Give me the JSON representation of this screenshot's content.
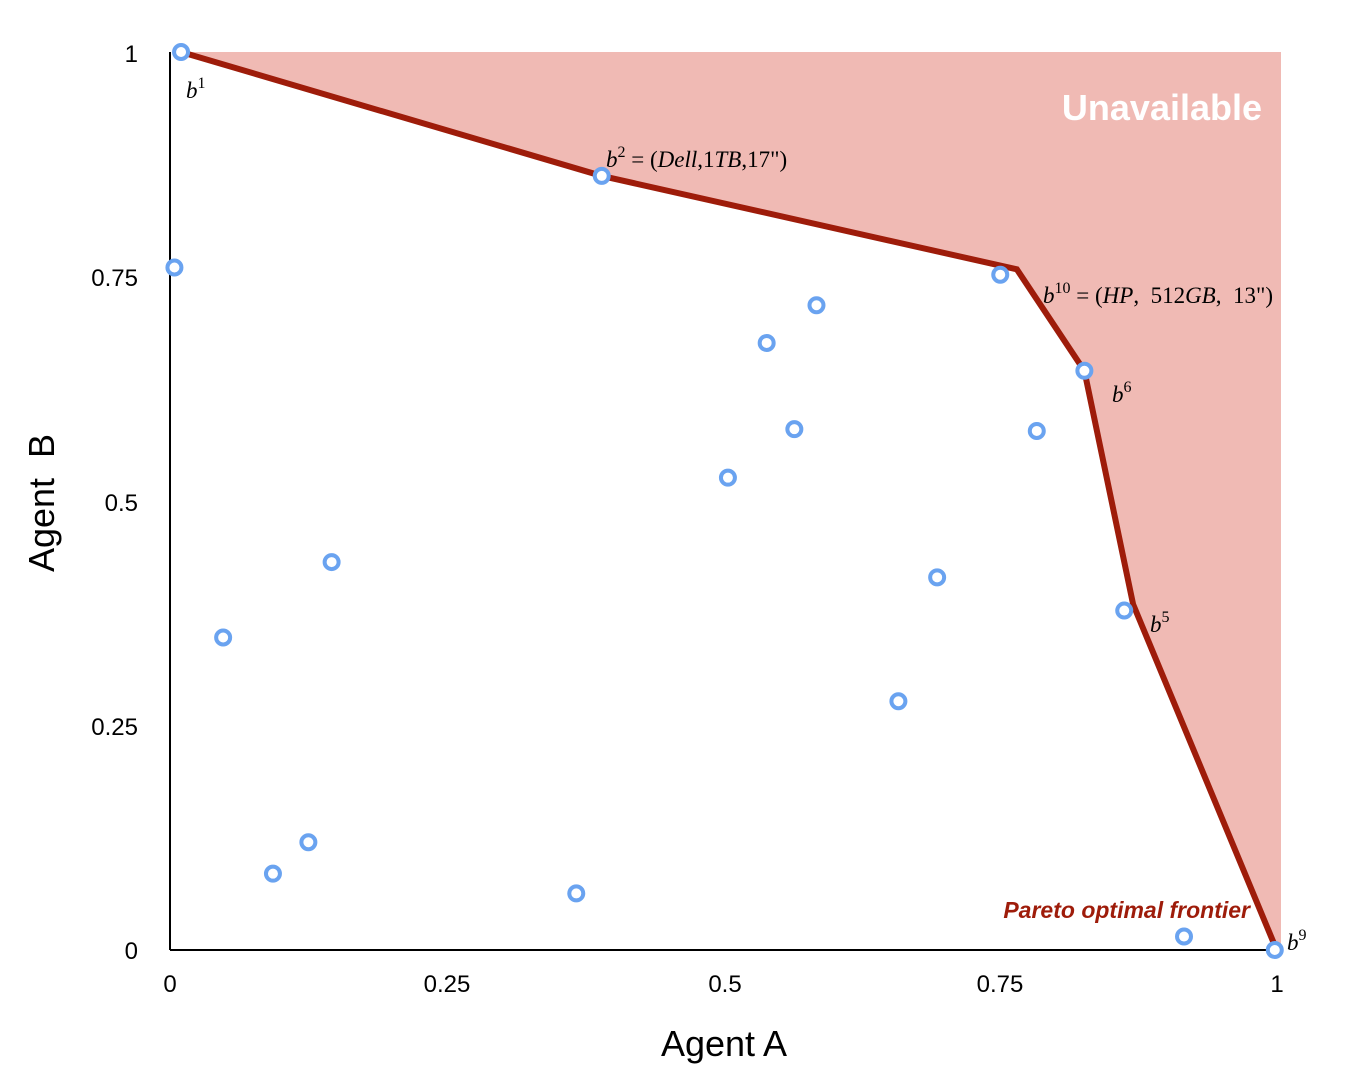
{
  "chart_data": {
    "type": "scatter",
    "xlabel": "Agent A",
    "ylabel": "Agent  B",
    "xlim": [
      0,
      1
    ],
    "ylim": [
      0,
      1
    ],
    "x_ticks": [
      "0",
      "0.25",
      "0.5",
      "0.75",
      "1"
    ],
    "y_ticks": [
      "0",
      "0.25",
      "0.5",
      "0.75",
      "1"
    ],
    "region_label": "Unavailable",
    "region_color": "#f0bab4",
    "frontier_label": "Pareto optimal frontier",
    "frontier_color": "#9e1c0a",
    "point_color": "#6aa3f0",
    "frontier": [
      {
        "x": 0.01,
        "y": 1.0
      },
      {
        "x": 0.39,
        "y": 0.862
      },
      {
        "x": 0.765,
        "y": 0.758
      },
      {
        "x": 0.826,
        "y": 0.645
      },
      {
        "x": 0.87,
        "y": 0.385
      },
      {
        "x": 0.998,
        "y": 0.005
      }
    ],
    "points": [
      {
        "x": 0.01,
        "y": 1.0
      },
      {
        "x": 0.39,
        "y": 0.862
      },
      {
        "x": 0.004,
        "y": 0.76
      },
      {
        "x": 0.75,
        "y": 0.752
      },
      {
        "x": 0.584,
        "y": 0.718
      },
      {
        "x": 0.539,
        "y": 0.676
      },
      {
        "x": 0.826,
        "y": 0.645
      },
      {
        "x": 0.564,
        "y": 0.58
      },
      {
        "x": 0.783,
        "y": 0.578
      },
      {
        "x": 0.504,
        "y": 0.526
      },
      {
        "x": 0.146,
        "y": 0.432
      },
      {
        "x": 0.693,
        "y": 0.415
      },
      {
        "x": 0.862,
        "y": 0.378
      },
      {
        "x": 0.048,
        "y": 0.348
      },
      {
        "x": 0.658,
        "y": 0.277
      },
      {
        "x": 0.125,
        "y": 0.12
      },
      {
        "x": 0.093,
        "y": 0.085
      },
      {
        "x": 0.367,
        "y": 0.063
      },
      {
        "x": 0.916,
        "y": 0.015
      },
      {
        "x": 0.998,
        "y": 0.0
      }
    ],
    "annotations": {
      "b1": {
        "base": "b",
        "sup": "1"
      },
      "b2": {
        "base": "b",
        "sup": "2",
        "rest_1": " = (",
        "rest_2": "Dell",
        "rest_3": ",1",
        "rest_4": "TB",
        "rest_5": ",17\")"
      },
      "b10": {
        "base": "b",
        "sup": "10",
        "rest_1": " = (",
        "rest_2": "HP",
        "rest_3": ",  512",
        "rest_4": "GB",
        "rest_5": ",  13\")"
      },
      "b6": {
        "base": "b",
        "sup": "6"
      },
      "b5": {
        "base": "b",
        "sup": "5"
      },
      "b9": {
        "base": "b",
        "sup": "9"
      }
    }
  }
}
